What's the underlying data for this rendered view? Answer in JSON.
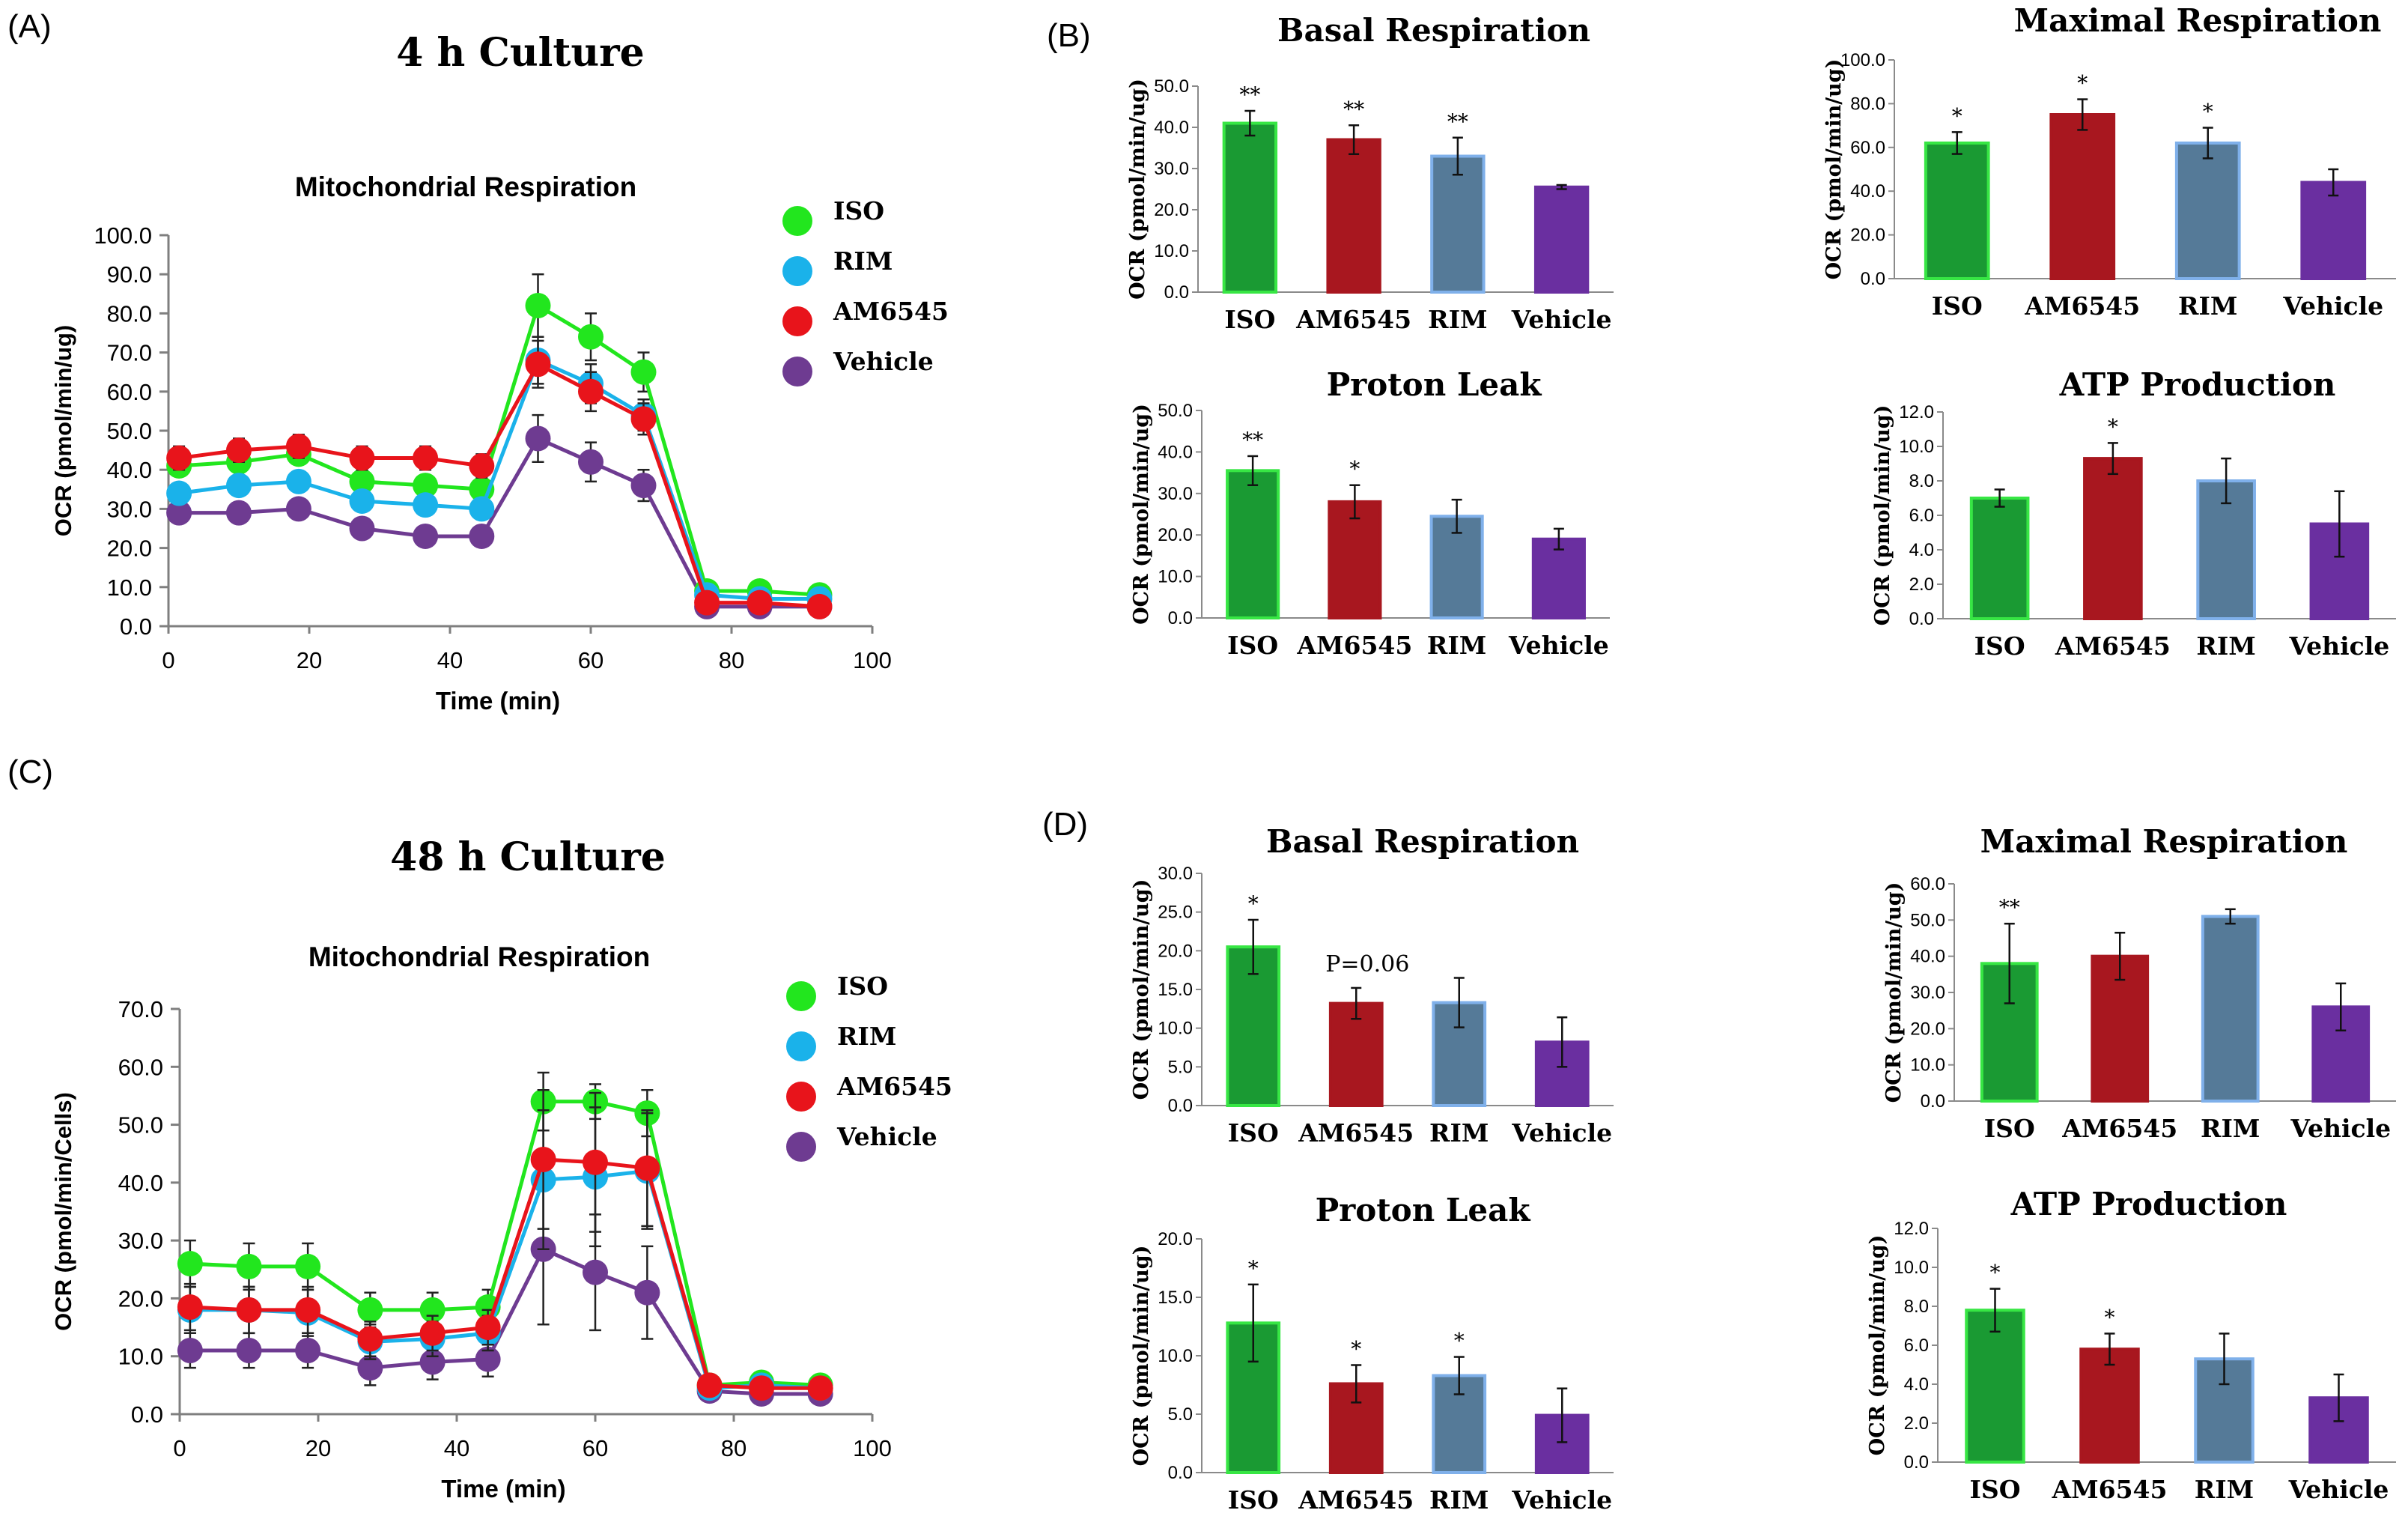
{
  "panels": [
    {
      "label": "(A)",
      "title": "4 h Culture",
      "colors": {
        "ISO": "#22e61e",
        "RIM": "#1ab2ea",
        "AM6545": "#e8141b",
        "Vehicle": "#6e3b91"
      }
    },
    {
      "label": "(B)"
    },
    {
      "label": "(C)",
      "title": "48 h Culture"
    },
    {
      "label": "(D)"
    }
  ],
  "chart_data": [
    {
      "type": "line",
      "panel": "A",
      "title": "Mitochondrial Respiration",
      "xlabel": "Time (min)",
      "ylabel": "OCR (pmol/min/ug)",
      "xlim": [
        0,
        100
      ],
      "ylim": [
        0,
        100
      ],
      "xticks": [
        "0",
        "20",
        "40",
        "60",
        "80",
        "100"
      ],
      "yticks": [
        "0.0",
        "10.0",
        "20.0",
        "30.0",
        "40.0",
        "50.0",
        "60.0",
        "70.0",
        "80.0",
        "90.0",
        "100.0"
      ],
      "legend": [
        "ISO",
        "RIM",
        "AM6545",
        "Vehicle"
      ],
      "x": [
        1.5,
        10,
        18.5,
        27.5,
        36.5,
        44.5,
        52.5,
        60,
        67.5,
        76.5,
        84,
        92.5
      ],
      "series": [
        {
          "name": "ISO",
          "values": [
            41,
            42,
            44,
            37,
            36,
            35,
            82,
            74,
            65,
            9,
            9,
            8
          ],
          "errors": [
            2,
            2,
            2,
            2,
            2,
            2,
            8,
            6,
            5,
            1,
            1,
            1
          ]
        },
        {
          "name": "RIM",
          "values": [
            34,
            36,
            37,
            32,
            31,
            30,
            68,
            62,
            54,
            8,
            7,
            7
          ],
          "errors": [
            2,
            2,
            2,
            2,
            2,
            2,
            6,
            5,
            4,
            1,
            1,
            1
          ]
        },
        {
          "name": "AM6545",
          "values": [
            43,
            45,
            46,
            43,
            43,
            41,
            67,
            60,
            53,
            6,
            6,
            5
          ],
          "errors": [
            3,
            3,
            3,
            3,
            3,
            3,
            6,
            5,
            4,
            1,
            1,
            1
          ]
        },
        {
          "name": "Vehicle",
          "values": [
            29,
            29,
            30,
            25,
            23,
            23,
            48,
            42,
            36,
            5,
            5,
            5
          ],
          "errors": [
            2,
            2,
            2,
            2,
            2,
            2,
            6,
            5,
            4,
            1,
            1,
            1
          ]
        }
      ]
    },
    {
      "type": "line",
      "panel": "C",
      "title": "Mitochondrial Respiration",
      "xlabel": "Time (min)",
      "ylabel": "OCR (pmol/min/Cells)",
      "xlim": [
        0,
        100
      ],
      "ylim": [
        0,
        70
      ],
      "xticks": [
        "0",
        "20",
        "40",
        "60",
        "80",
        "100"
      ],
      "yticks": [
        "0.0",
        "10.0",
        "20.0",
        "30.0",
        "40.0",
        "50.0",
        "60.0",
        "70.0"
      ],
      "legend": [
        "ISO",
        "RIM",
        "AM6545",
        "Vehicle"
      ],
      "x": [
        1.5,
        10,
        18.5,
        27.5,
        36.5,
        44.5,
        52.5,
        60,
        67.5,
        76.5,
        84,
        92.5
      ],
      "series": [
        {
          "name": "ISO",
          "values": [
            26,
            25.5,
            25.5,
            18,
            18,
            18.5,
            54,
            54,
            52,
            5,
            5.5,
            5
          ],
          "errors": [
            4,
            4,
            4,
            3,
            3,
            3,
            5,
            3,
            4,
            1,
            1,
            1
          ]
        },
        {
          "name": "RIM",
          "values": [
            18,
            18,
            17.5,
            12.5,
            13,
            14,
            40.5,
            41,
            42,
            4.5,
            5,
            4.5
          ],
          "errors": [
            4,
            4,
            4,
            3,
            3,
            3,
            12,
            12,
            10,
            1,
            1,
            1
          ]
        },
        {
          "name": "AM6545",
          "values": [
            18.5,
            18,
            18,
            13,
            14,
            15,
            44,
            43.5,
            42.5,
            5,
            4.5,
            4.5
          ],
          "errors": [
            4,
            4,
            4,
            3,
            3,
            3,
            12,
            12,
            10,
            1,
            1,
            1
          ]
        },
        {
          "name": "Vehicle",
          "values": [
            11,
            11,
            11,
            8,
            9,
            9.5,
            28.5,
            24.5,
            21,
            4,
            3.5,
            3.5
          ],
          "errors": [
            3,
            3,
            3,
            3,
            3,
            3,
            13,
            10,
            8,
            1,
            1,
            1
          ]
        }
      ]
    },
    {
      "type": "bar",
      "panel": "B",
      "title": "Basal Respiration",
      "ylabel": "OCR (pmol/min/ug)",
      "ylim": [
        0,
        50
      ],
      "yticks": [
        "0.0",
        "10.0",
        "20.0",
        "30.0",
        "40.0",
        "50.0"
      ],
      "categories": [
        "ISO",
        "AM6545",
        "RIM",
        "Vehicle"
      ],
      "values": [
        41,
        37,
        33,
        25.5
      ],
      "errors": [
        3,
        3.5,
        4.5,
        0.5
      ],
      "stars": [
        "**",
        "**",
        "**",
        ""
      ]
    },
    {
      "type": "bar",
      "panel": "B",
      "title": "Maximal Respiration",
      "ylabel": "OCR (pmol/min/ug)",
      "ylim": [
        0,
        100
      ],
      "yticks": [
        "0.0",
        "20.0",
        "40.0",
        "60.0",
        "80.0",
        "100.0"
      ],
      "categories": [
        "ISO",
        "AM6545",
        "RIM",
        "Vehicle"
      ],
      "values": [
        62,
        75,
        62,
        44
      ],
      "errors": [
        5,
        7,
        7,
        6
      ],
      "stars": [
        "*",
        "*",
        "*",
        ""
      ]
    },
    {
      "type": "bar",
      "panel": "B",
      "title": "Proton Leak",
      "ylabel": "OCR (pmol/min/ug)",
      "ylim": [
        0,
        50
      ],
      "yticks": [
        "0.0",
        "10.0",
        "20.0",
        "30.0",
        "40.0",
        "50.0"
      ],
      "categories": [
        "ISO",
        "AM6545",
        "RIM",
        "Vehicle"
      ],
      "values": [
        35.5,
        28,
        24.5,
        19
      ],
      "errors": [
        3.5,
        4,
        4,
        2.5
      ],
      "stars": [
        "**",
        "*",
        "",
        ""
      ]
    },
    {
      "type": "bar",
      "panel": "B",
      "title": "ATP Production",
      "ylabel": "OCR (pmol/min/ug)",
      "ylim": [
        0,
        12
      ],
      "yticks": [
        "0.0",
        "2.0",
        "4.0",
        "6.0",
        "8.0",
        "10.0",
        "12.0"
      ],
      "categories": [
        "ISO",
        "AM6545",
        "RIM",
        "Vehicle"
      ],
      "values": [
        7,
        9.3,
        8,
        5.5
      ],
      "errors": [
        0.5,
        0.9,
        1.3,
        1.9
      ],
      "stars": [
        "",
        "*",
        "",
        ""
      ]
    },
    {
      "type": "bar",
      "panel": "D",
      "title": "Basal Respiration",
      "ylabel": "OCR (pmol/min/ug)",
      "ylim": [
        0,
        30
      ],
      "yticks": [
        "0.0",
        "5.0",
        "10.0",
        "15.0",
        "20.0",
        "25.0",
        "30.0"
      ],
      "categories": [
        "ISO",
        "AM6545",
        "RIM",
        "Vehicle"
      ],
      "values": [
        20.5,
        13.2,
        13.3,
        8.2
      ],
      "errors": [
        3.5,
        2.0,
        3.2,
        3.2
      ],
      "stars": [
        "*",
        "",
        "",
        ""
      ],
      "annotation": {
        "text": "P=0.06",
        "index": 1
      }
    },
    {
      "type": "bar",
      "panel": "D",
      "title": "Maximal Respiration",
      "ylabel": "OCR (pmol/min/ug)",
      "ylim": [
        0,
        60
      ],
      "yticks": [
        "0.0",
        "10.0",
        "20.0",
        "30.0",
        "40.0",
        "50.0",
        "60.0"
      ],
      "categories": [
        "ISO",
        "AM6545",
        "RIM",
        "Vehicle"
      ],
      "values": [
        38,
        40,
        51,
        26
      ],
      "errors": [
        11,
        6.5,
        2,
        6.5
      ],
      "stars": [
        "**",
        "",
        "",
        ""
      ]
    },
    {
      "type": "bar",
      "panel": "D",
      "title": "Proton Leak",
      "ylabel": "OCR (pmol/min/ug)",
      "ylim": [
        0,
        20
      ],
      "yticks": [
        "0.0",
        "5.0",
        "10.0",
        "15.0",
        "20.0"
      ],
      "categories": [
        "ISO",
        "AM6545",
        "RIM",
        "Vehicle"
      ],
      "values": [
        12.8,
        7.6,
        8.3,
        4.9
      ],
      "errors": [
        3.3,
        1.6,
        1.6,
        2.3
      ],
      "stars": [
        "*",
        "*",
        "*",
        ""
      ]
    },
    {
      "type": "bar",
      "panel": "D",
      "title": "ATP Production",
      "ylabel": "OCR (pmol/min/ug)",
      "ylim": [
        0,
        12
      ],
      "yticks": [
        "0.0",
        "2.0",
        "4.0",
        "6.0",
        "8.0",
        "10.0",
        "12.0"
      ],
      "categories": [
        "ISO",
        "AM6545",
        "RIM",
        "Vehicle"
      ],
      "values": [
        7.8,
        5.8,
        5.3,
        3.3
      ],
      "errors": [
        1.1,
        0.8,
        1.3,
        1.2
      ],
      "stars": [
        "*",
        "*",
        "",
        ""
      ]
    }
  ],
  "bar_colors": {
    "ISO": "#1a9a33",
    "AM6545": "#a8171f",
    "RIM": "#557a98",
    "Vehicle": "#6a2fa0",
    "RIM_edge": "#7fb0ea",
    "ISO_edge": "#37e644"
  }
}
